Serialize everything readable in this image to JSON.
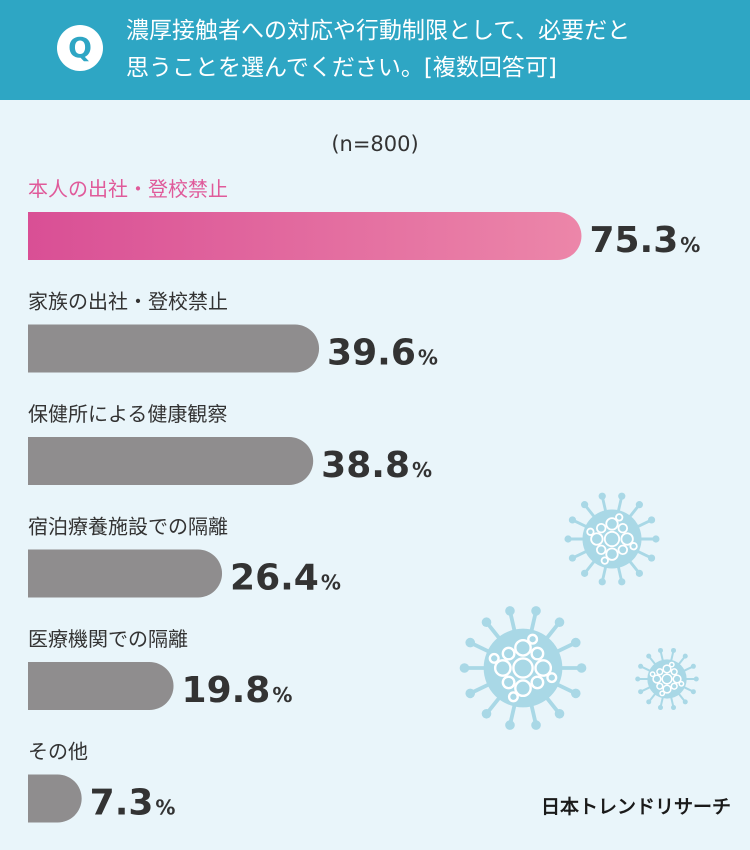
{
  "header": {
    "badge": "Q",
    "question_line1": "濃厚接触者への対応や行動制限として、必要だと",
    "question_line2": "思うことを選んでください。[複数回答可]"
  },
  "sample_label": "(n=800)",
  "brand": "日本トレンドリサーチ",
  "colors": {
    "top_bar_start": "#d94f95",
    "top_bar_end": "#ec86a9",
    "top_label": "#e05a9a",
    "bar": "#8f8d8e",
    "text": "#333333",
    "virus": "#a9d8e6"
  },
  "chart_data": {
    "type": "bar",
    "orientation": "horizontal",
    "unit": "%",
    "categories": [
      "本人の出社・登校禁止",
      "家族の出社・登校禁止",
      "保健所による健康観察",
      "宿泊療養施設での隔離",
      "医療機関での隔離",
      "その他"
    ],
    "values": [
      75.3,
      39.6,
      38.8,
      26.4,
      19.8,
      7.3
    ],
    "value_labels": [
      "75.3",
      "39.6",
      "38.8",
      "26.4",
      "19.8",
      "7.3"
    ],
    "highlight_index": 0,
    "xlim": [
      0,
      100
    ]
  }
}
